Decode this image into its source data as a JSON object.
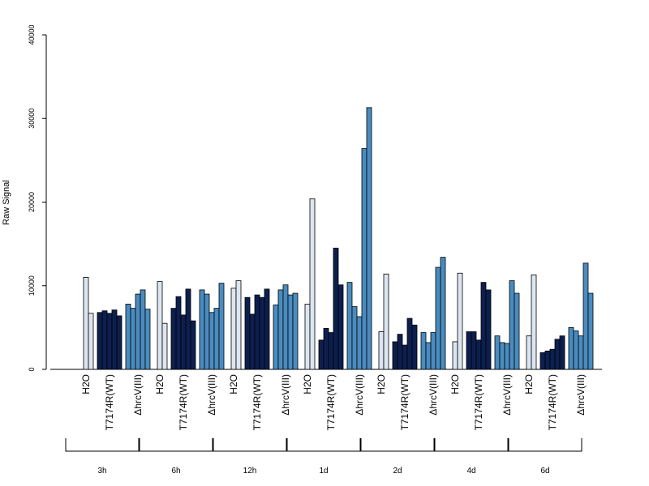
{
  "chart_data": {
    "type": "bar",
    "ylabel": "Raw Signal",
    "ylim": [
      0,
      40000
    ],
    "yticks": [
      0,
      10000,
      20000,
      30000,
      40000
    ],
    "subgroup_labels": [
      "H2O",
      "T7174R(WT)",
      "ΔhrcV(III)"
    ],
    "colors": [
      "#dce6f1",
      "#0c1f4f",
      "#4a8cc0"
    ],
    "groups": [
      {
        "label": "3h",
        "subgroups": [
          {
            "values": [
              0,
              11000,
              6700
            ]
          },
          {
            "values": [
              6800,
              7000,
              6700,
              7100,
              6400
            ]
          },
          {
            "values": [
              7800,
              7300,
              9000,
              9500,
              7200
            ]
          }
        ]
      },
      {
        "label": "6h",
        "subgroups": [
          {
            "values": [
              0,
              10500,
              5500
            ]
          },
          {
            "values": [
              7300,
              8700,
              6500,
              9600,
              5800
            ]
          },
          {
            "values": [
              9500,
              9000,
              6800,
              7300,
              10300
            ]
          }
        ]
      },
      {
        "label": "12h",
        "subgroups": [
          {
            "values": [
              0,
              9700,
              10600
            ]
          },
          {
            "values": [
              8600,
              6600,
              8900,
              8600,
              9600
            ]
          },
          {
            "values": [
              7700,
              9500,
              10100,
              8900,
              9100
            ]
          }
        ]
      },
      {
        "label": "1d",
        "subgroups": [
          {
            "values": [
              0,
              7800,
              20400
            ]
          },
          {
            "values": [
              3500,
              4900,
              4400,
              14500,
              10100
            ]
          },
          {
            "values": [
              10400,
              7500,
              6300,
              26400,
              31300
            ]
          }
        ]
      },
      {
        "label": "2d",
        "subgroups": [
          {
            "values": [
              0,
              4500,
              11400
            ]
          },
          {
            "values": [
              3300,
              4200,
              2900,
              6100,
              5300
            ]
          },
          {
            "values": [
              4400,
              3200,
              4400,
              12200,
              13400
            ]
          }
        ]
      },
      {
        "label": "4d",
        "subgroups": [
          {
            "values": [
              0,
              3300,
              11500
            ]
          },
          {
            "values": [
              4500,
              4500,
              3500,
              10400,
              9500
            ]
          },
          {
            "values": [
              4000,
              3200,
              3100,
              10600,
              9100
            ]
          }
        ]
      },
      {
        "label": "6d",
        "subgroups": [
          {
            "values": [
              0,
              4000,
              11300
            ]
          },
          {
            "values": [
              2000,
              2200,
              2400,
              3600,
              4000
            ]
          },
          {
            "values": [
              5000,
              4600,
              4000,
              12700,
              9100
            ]
          }
        ]
      }
    ]
  }
}
